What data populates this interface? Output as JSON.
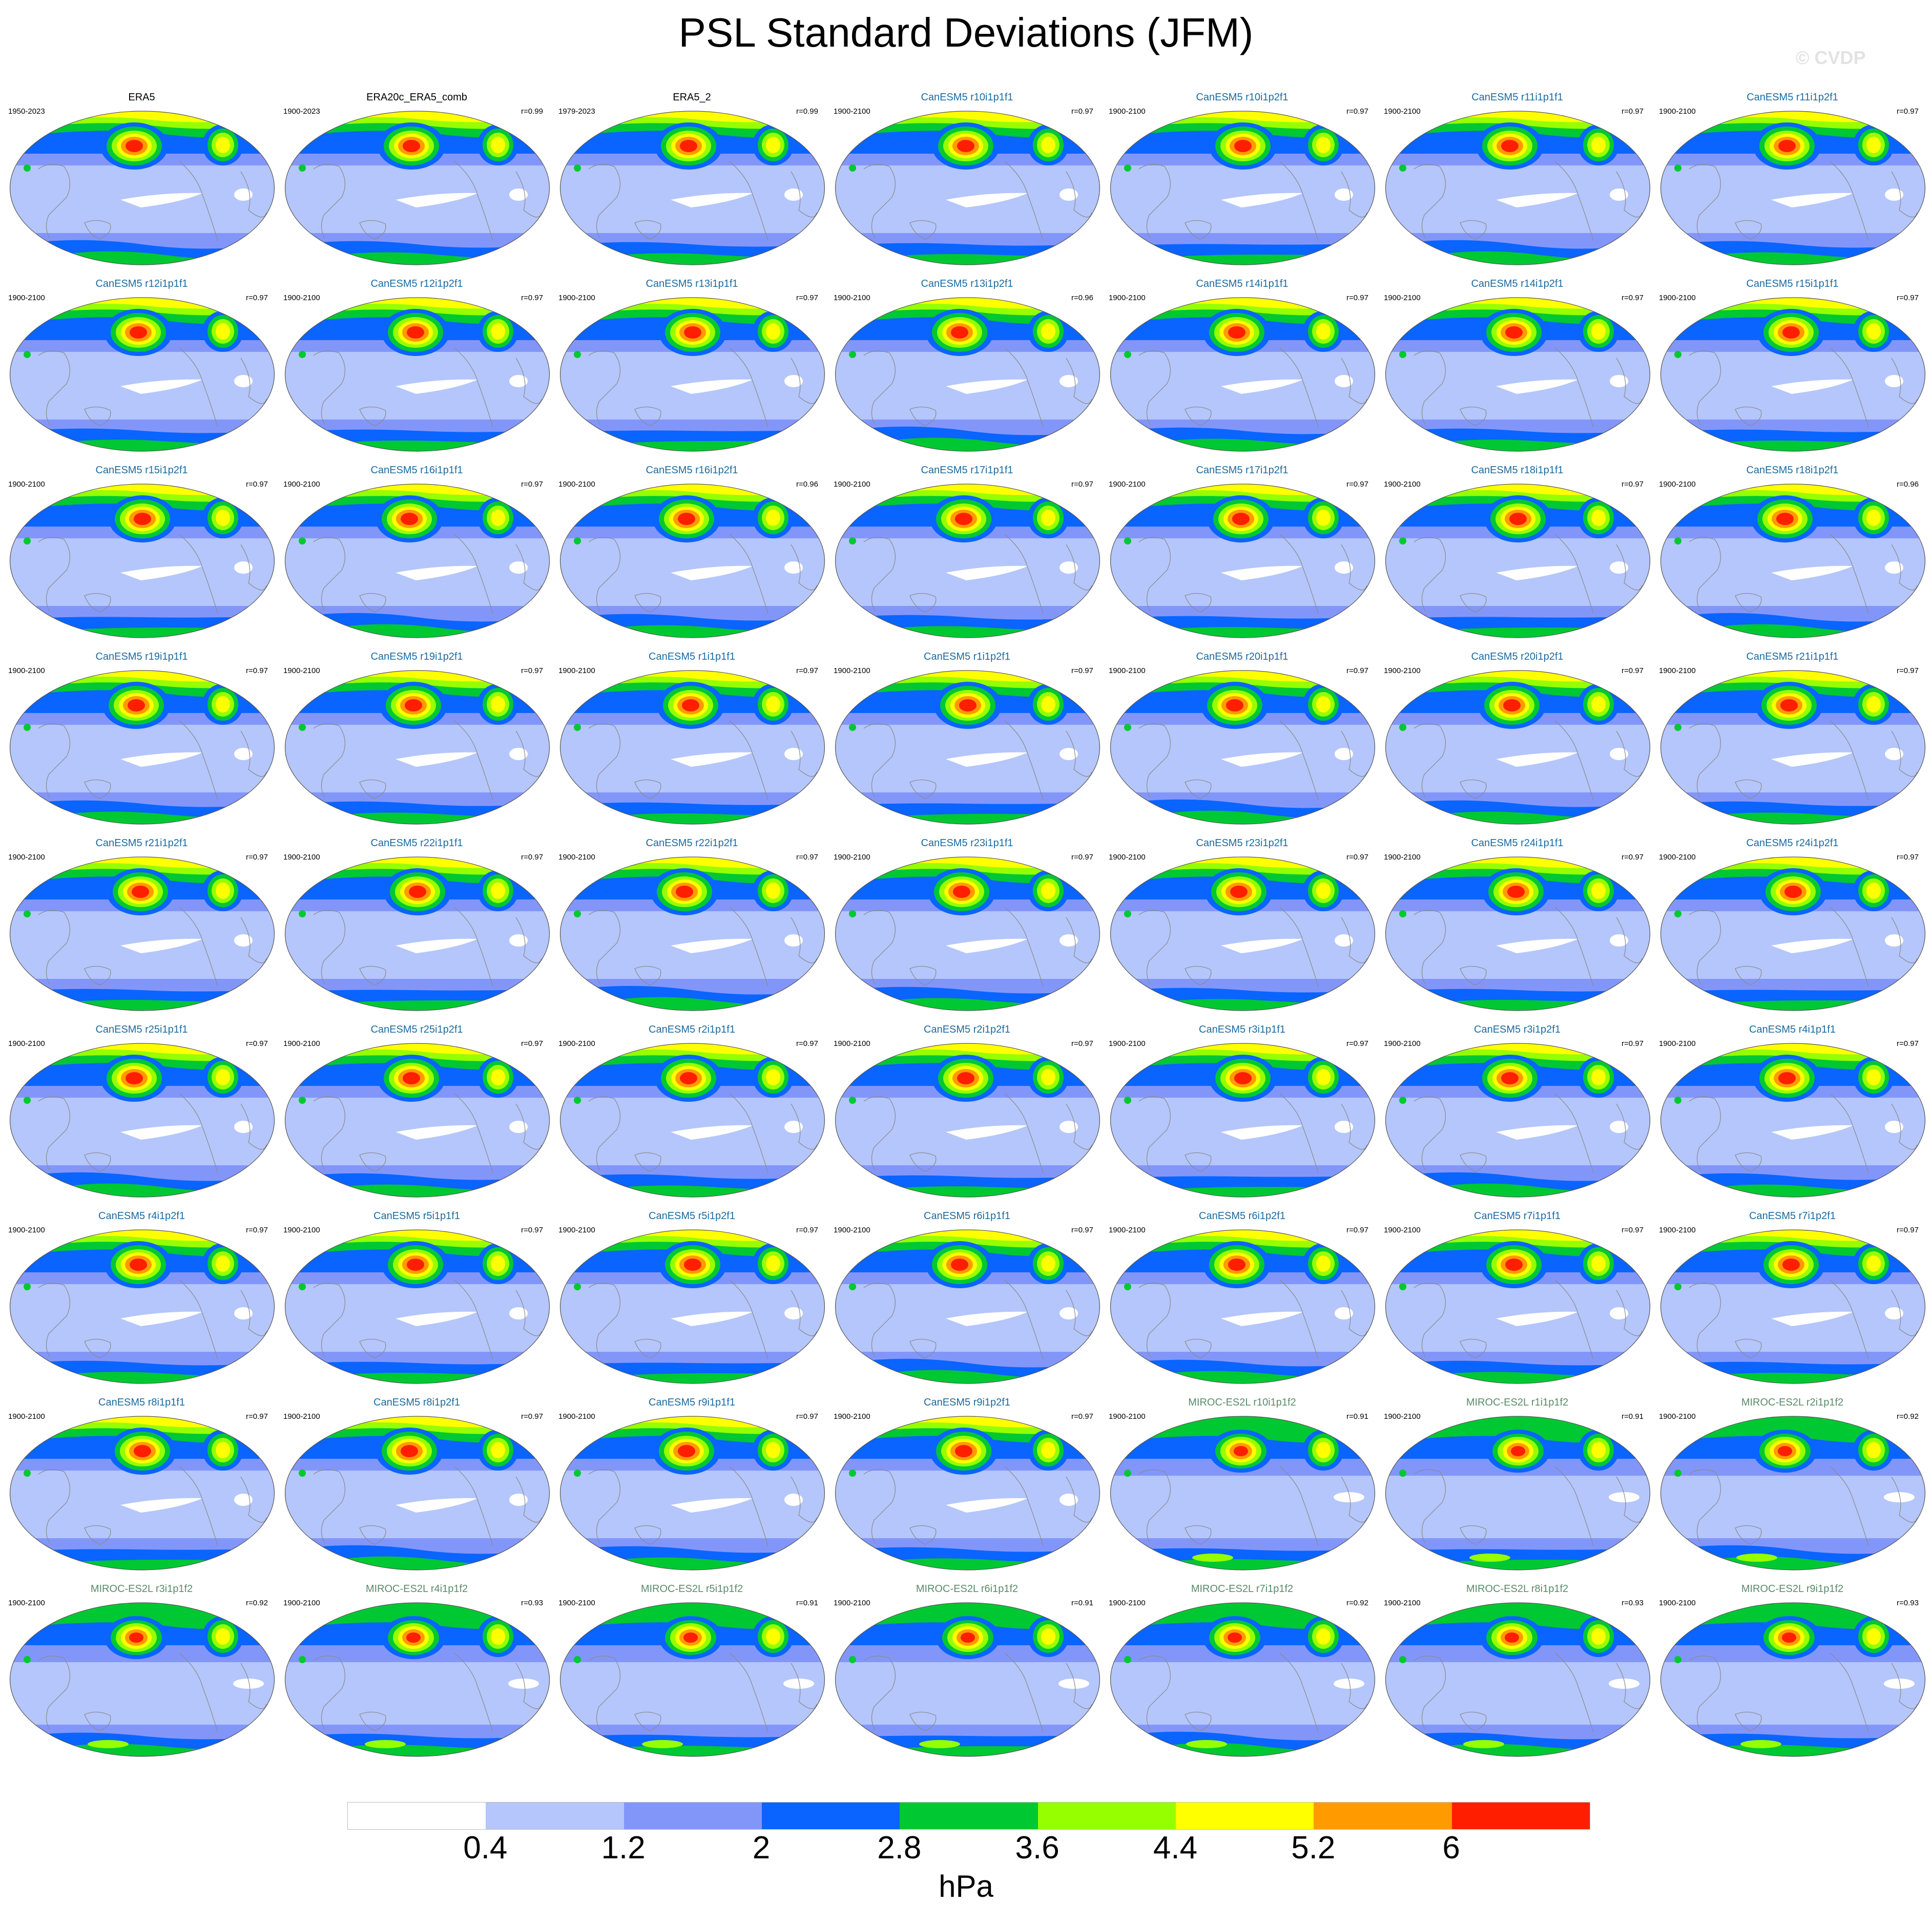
{
  "title": "PSL Standard Deviations (JFM)",
  "watermark": "© CVDP",
  "colors": {
    "obs_title": "#000000",
    "canesm5_title": "#1a6aa0",
    "miroc_title": "#5a8a6a",
    "land_outline": "#8a8a8a"
  },
  "panels": [
    {
      "name": "ERA5",
      "period": "1950-2023",
      "r": "",
      "kind": "obs"
    },
    {
      "name": "ERA20c_ERA5_comb",
      "period": "1900-2023",
      "r": "r=0.99",
      "kind": "obs"
    },
    {
      "name": "ERA5_2",
      "period": "1979-2023",
      "r": "r=0.99",
      "kind": "obs"
    },
    {
      "name": "CanESM5 r10i1p1f1",
      "period": "1900-2100",
      "r": "r=0.97",
      "kind": "canesm5"
    },
    {
      "name": "CanESM5 r10i1p2f1",
      "period": "1900-2100",
      "r": "r=0.97",
      "kind": "canesm5"
    },
    {
      "name": "CanESM5 r11i1p1f1",
      "period": "1900-2100",
      "r": "r=0.97",
      "kind": "canesm5"
    },
    {
      "name": "CanESM5 r11i1p2f1",
      "period": "1900-2100",
      "r": "r=0.97",
      "kind": "canesm5"
    },
    {
      "name": "CanESM5 r12i1p1f1",
      "period": "1900-2100",
      "r": "r=0.97",
      "kind": "canesm5"
    },
    {
      "name": "CanESM5 r12i1p2f1",
      "period": "1900-2100",
      "r": "r=0.97",
      "kind": "canesm5"
    },
    {
      "name": "CanESM5 r13i1p1f1",
      "period": "1900-2100",
      "r": "r=0.97",
      "kind": "canesm5"
    },
    {
      "name": "CanESM5 r13i1p2f1",
      "period": "1900-2100",
      "r": "r=0.96",
      "kind": "canesm5"
    },
    {
      "name": "CanESM5 r14i1p1f1",
      "period": "1900-2100",
      "r": "r=0.97",
      "kind": "canesm5"
    },
    {
      "name": "CanESM5 r14i1p2f1",
      "period": "1900-2100",
      "r": "r=0.97",
      "kind": "canesm5"
    },
    {
      "name": "CanESM5 r15i1p1f1",
      "period": "1900-2100",
      "r": "r=0.97",
      "kind": "canesm5"
    },
    {
      "name": "CanESM5 r15i1p2f1",
      "period": "1900-2100",
      "r": "r=0.97",
      "kind": "canesm5"
    },
    {
      "name": "CanESM5 r16i1p1f1",
      "period": "1900-2100",
      "r": "r=0.97",
      "kind": "canesm5"
    },
    {
      "name": "CanESM5 r16i1p2f1",
      "period": "1900-2100",
      "r": "r=0.96",
      "kind": "canesm5"
    },
    {
      "name": "CanESM5 r17i1p1f1",
      "period": "1900-2100",
      "r": "r=0.97",
      "kind": "canesm5"
    },
    {
      "name": "CanESM5 r17i1p2f1",
      "period": "1900-2100",
      "r": "r=0.97",
      "kind": "canesm5"
    },
    {
      "name": "CanESM5 r18i1p1f1",
      "period": "1900-2100",
      "r": "r=0.97",
      "kind": "canesm5"
    },
    {
      "name": "CanESM5 r18i1p2f1",
      "period": "1900-2100",
      "r": "r=0.96",
      "kind": "canesm5"
    },
    {
      "name": "CanESM5 r19i1p1f1",
      "period": "1900-2100",
      "r": "r=0.97",
      "kind": "canesm5"
    },
    {
      "name": "CanESM5 r19i1p2f1",
      "period": "1900-2100",
      "r": "r=0.97",
      "kind": "canesm5"
    },
    {
      "name": "CanESM5 r1i1p1f1",
      "period": "1900-2100",
      "r": "r=0.97",
      "kind": "canesm5"
    },
    {
      "name": "CanESM5 r1i1p2f1",
      "period": "1900-2100",
      "r": "r=0.97",
      "kind": "canesm5"
    },
    {
      "name": "CanESM5 r20i1p1f1",
      "period": "1900-2100",
      "r": "r=0.97",
      "kind": "canesm5"
    },
    {
      "name": "CanESM5 r20i1p2f1",
      "period": "1900-2100",
      "r": "r=0.97",
      "kind": "canesm5"
    },
    {
      "name": "CanESM5 r21i1p1f1",
      "period": "1900-2100",
      "r": "r=0.97",
      "kind": "canesm5"
    },
    {
      "name": "CanESM5 r21i1p2f1",
      "period": "1900-2100",
      "r": "r=0.97",
      "kind": "canesm5"
    },
    {
      "name": "CanESM5 r22i1p1f1",
      "period": "1900-2100",
      "r": "r=0.97",
      "kind": "canesm5"
    },
    {
      "name": "CanESM5 r22i1p2f1",
      "period": "1900-2100",
      "r": "r=0.97",
      "kind": "canesm5"
    },
    {
      "name": "CanESM5 r23i1p1f1",
      "period": "1900-2100",
      "r": "r=0.97",
      "kind": "canesm5"
    },
    {
      "name": "CanESM5 r23i1p2f1",
      "period": "1900-2100",
      "r": "r=0.97",
      "kind": "canesm5"
    },
    {
      "name": "CanESM5 r24i1p1f1",
      "period": "1900-2100",
      "r": "r=0.97",
      "kind": "canesm5"
    },
    {
      "name": "CanESM5 r24i1p2f1",
      "period": "1900-2100",
      "r": "r=0.97",
      "kind": "canesm5"
    },
    {
      "name": "CanESM5 r25i1p1f1",
      "period": "1900-2100",
      "r": "r=0.97",
      "kind": "canesm5"
    },
    {
      "name": "CanESM5 r25i1p2f1",
      "period": "1900-2100",
      "r": "r=0.97",
      "kind": "canesm5"
    },
    {
      "name": "CanESM5 r2i1p1f1",
      "period": "1900-2100",
      "r": "r=0.97",
      "kind": "canesm5"
    },
    {
      "name": "CanESM5 r2i1p2f1",
      "period": "1900-2100",
      "r": "r=0.97",
      "kind": "canesm5"
    },
    {
      "name": "CanESM5 r3i1p1f1",
      "period": "1900-2100",
      "r": "r=0.97",
      "kind": "canesm5"
    },
    {
      "name": "CanESM5 r3i1p2f1",
      "period": "1900-2100",
      "r": "r=0.97",
      "kind": "canesm5"
    },
    {
      "name": "CanESM5 r4i1p1f1",
      "period": "1900-2100",
      "r": "r=0.97",
      "kind": "canesm5"
    },
    {
      "name": "CanESM5 r4i1p2f1",
      "period": "1900-2100",
      "r": "r=0.97",
      "kind": "canesm5"
    },
    {
      "name": "CanESM5 r5i1p1f1",
      "period": "1900-2100",
      "r": "r=0.97",
      "kind": "canesm5"
    },
    {
      "name": "CanESM5 r5i1p2f1",
      "period": "1900-2100",
      "r": "r=0.97",
      "kind": "canesm5"
    },
    {
      "name": "CanESM5 r6i1p1f1",
      "period": "1900-2100",
      "r": "r=0.97",
      "kind": "canesm5"
    },
    {
      "name": "CanESM5 r6i1p2f1",
      "period": "1900-2100",
      "r": "r=0.97",
      "kind": "canesm5"
    },
    {
      "name": "CanESM5 r7i1p1f1",
      "period": "1900-2100",
      "r": "r=0.97",
      "kind": "canesm5"
    },
    {
      "name": "CanESM5 r7i1p2f1",
      "period": "1900-2100",
      "r": "r=0.97",
      "kind": "canesm5"
    },
    {
      "name": "CanESM5 r8i1p1f1",
      "period": "1900-2100",
      "r": "r=0.97",
      "kind": "canesm5"
    },
    {
      "name": "CanESM5 r8i1p2f1",
      "period": "1900-2100",
      "r": "r=0.97",
      "kind": "canesm5"
    },
    {
      "name": "CanESM5 r9i1p1f1",
      "period": "1900-2100",
      "r": "r=0.97",
      "kind": "canesm5"
    },
    {
      "name": "CanESM5 r9i1p2f1",
      "period": "1900-2100",
      "r": "r=0.97",
      "kind": "canesm5"
    },
    {
      "name": "MIROC-ES2L r10i1p1f2",
      "period": "1900-2100",
      "r": "r=0.91",
      "kind": "miroc"
    },
    {
      "name": "MIROC-ES2L r1i1p1f2",
      "period": "1900-2100",
      "r": "r=0.91",
      "kind": "miroc"
    },
    {
      "name": "MIROC-ES2L r2i1p1f2",
      "period": "1900-2100",
      "r": "r=0.92",
      "kind": "miroc"
    },
    {
      "name": "MIROC-ES2L r3i1p1f2",
      "period": "1900-2100",
      "r": "r=0.92",
      "kind": "miroc"
    },
    {
      "name": "MIROC-ES2L r4i1p1f2",
      "period": "1900-2100",
      "r": "r=0.93",
      "kind": "miroc"
    },
    {
      "name": "MIROC-ES2L r5i1p1f2",
      "period": "1900-2100",
      "r": "r=0.91",
      "kind": "miroc"
    },
    {
      "name": "MIROC-ES2L r6i1p1f2",
      "period": "1900-2100",
      "r": "r=0.91",
      "kind": "miroc"
    },
    {
      "name": "MIROC-ES2L r7i1p1f2",
      "period": "1900-2100",
      "r": "r=0.92",
      "kind": "miroc"
    },
    {
      "name": "MIROC-ES2L r8i1p1f2",
      "period": "1900-2100",
      "r": "r=0.93",
      "kind": "miroc"
    },
    {
      "name": "MIROC-ES2L r9i1p1f2",
      "period": "1900-2100",
      "r": "r=0.93",
      "kind": "miroc"
    }
  ],
  "colorbar": {
    "colors": [
      "#ffffff",
      "#b4c6fb",
      "#8296fa",
      "#0a64ff",
      "#00c832",
      "#96ff00",
      "#ffff00",
      "#ff9b00",
      "#ff1e00"
    ],
    "levels": [
      "0.4",
      "1.2",
      "2",
      "2.8",
      "3.6",
      "4.4",
      "5.2",
      "6"
    ],
    "unit": "hPa"
  }
}
